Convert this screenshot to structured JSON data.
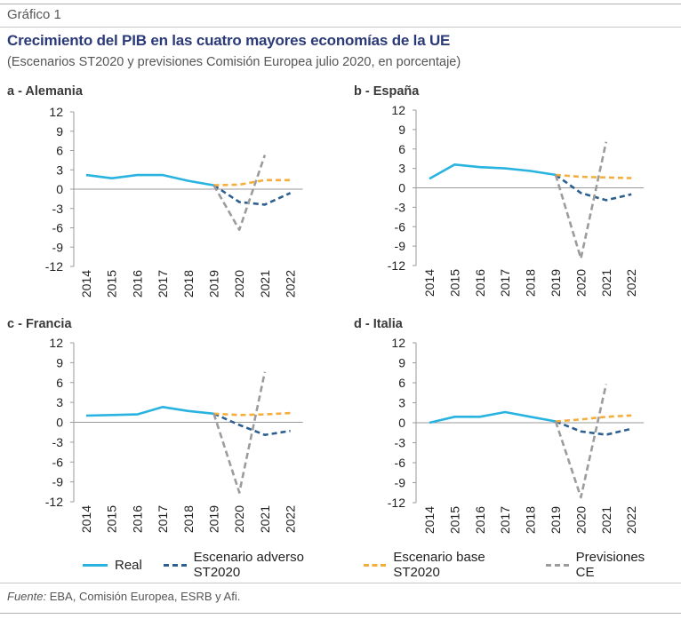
{
  "figure_label": "Gráfico 1",
  "title": "Crecimiento del PIB en las cuatro mayores economías de la UE",
  "subtitle": "(Escenarios ST2020 y previsiones Comisión Europea julio 2020, en porcentaje)",
  "source_label": "Fuente:",
  "source_text": "EBA, Comisión Europea, ESRB y Afi.",
  "colors": {
    "Real": "#29b3e0",
    "Escenario adverso ST2020": "#2d5f91",
    "Escenario base ST2020": "#f5ae3b",
    "Previsiones CE": "#9c9c9c"
  },
  "legend": [
    "Real",
    "Escenario adverso ST2020",
    "Escenario base ST2020",
    "Previsiones CE"
  ],
  "chart_data": [
    {
      "type": "line",
      "title": "a - Alemania",
      "x": [
        "2014",
        "2015",
        "2016",
        "2017",
        "2018",
        "2019",
        "2020",
        "2021",
        "2022"
      ],
      "ylim": [
        -12,
        12
      ],
      "yticks": [
        12,
        9,
        6,
        3,
        0,
        -3,
        -6,
        -9,
        -12
      ],
      "series": [
        {
          "name": "Real",
          "x": [
            "2014",
            "2015",
            "2016",
            "2017",
            "2018",
            "2019"
          ],
          "values": [
            2.2,
            1.7,
            2.2,
            2.2,
            1.3,
            0.6
          ],
          "dashed": false
        },
        {
          "name": "Escenario adverso ST2020",
          "x": [
            "2019",
            "2020",
            "2021",
            "2022"
          ],
          "values": [
            0.6,
            -2.0,
            -2.4,
            -0.6
          ],
          "dashed": true
        },
        {
          "name": "Escenario base ST2020",
          "x": [
            "2019",
            "2020",
            "2021",
            "2022"
          ],
          "values": [
            0.6,
            0.7,
            1.4,
            1.4
          ],
          "dashed": true
        },
        {
          "name": "Previsiones CE",
          "x": [
            "2019",
            "2020",
            "2021"
          ],
          "values": [
            0.6,
            -6.3,
            5.3
          ],
          "dashed": true
        }
      ]
    },
    {
      "type": "line",
      "title": "b - España",
      "x": [
        "2014",
        "2015",
        "2016",
        "2017",
        "2018",
        "2019",
        "2020",
        "2021",
        "2022"
      ],
      "ylim": [
        -12,
        12
      ],
      "yticks": [
        12,
        9,
        6,
        3,
        0,
        -3,
        -6,
        -9,
        -12
      ],
      "series": [
        {
          "name": "Real",
          "x": [
            "2014",
            "2015",
            "2016",
            "2017",
            "2018",
            "2019"
          ],
          "values": [
            1.4,
            3.6,
            3.2,
            3.0,
            2.6,
            2.0
          ],
          "dashed": false
        },
        {
          "name": "Escenario adverso ST2020",
          "x": [
            "2019",
            "2020",
            "2021",
            "2022"
          ],
          "values": [
            2.0,
            -0.8,
            -1.9,
            -1.0
          ],
          "dashed": true
        },
        {
          "name": "Escenario base ST2020",
          "x": [
            "2019",
            "2020",
            "2021",
            "2022"
          ],
          "values": [
            2.0,
            1.7,
            1.6,
            1.5
          ],
          "dashed": true
        },
        {
          "name": "Previsiones CE",
          "x": [
            "2019",
            "2020",
            "2021"
          ],
          "values": [
            2.0,
            -10.9,
            7.1
          ],
          "dashed": true
        }
      ]
    },
    {
      "type": "line",
      "title": "c - Francia",
      "x": [
        "2014",
        "2015",
        "2016",
        "2017",
        "2018",
        "2019",
        "2020",
        "2021",
        "2022"
      ],
      "ylim": [
        -12,
        12
      ],
      "yticks": [
        12,
        9,
        6,
        3,
        0,
        -3,
        -6,
        -9,
        -12
      ],
      "series": [
        {
          "name": "Real",
          "x": [
            "2014",
            "2015",
            "2016",
            "2017",
            "2018",
            "2019"
          ],
          "values": [
            1.0,
            1.1,
            1.2,
            2.3,
            1.7,
            1.3
          ],
          "dashed": false
        },
        {
          "name": "Escenario adverso ST2020",
          "x": [
            "2019",
            "2020",
            "2021",
            "2022"
          ],
          "values": [
            1.3,
            -0.4,
            -1.9,
            -1.3
          ],
          "dashed": true
        },
        {
          "name": "Escenario base ST2020",
          "x": [
            "2019",
            "2020",
            "2021",
            "2022"
          ],
          "values": [
            1.3,
            1.1,
            1.2,
            1.4
          ],
          "dashed": true
        },
        {
          "name": "Previsiones CE",
          "x": [
            "2019",
            "2020",
            "2021"
          ],
          "values": [
            1.3,
            -10.6,
            7.6
          ],
          "dashed": true
        }
      ]
    },
    {
      "type": "line",
      "title": "d - Italia",
      "x": [
        "2014",
        "2015",
        "2016",
        "2017",
        "2018",
        "2019",
        "2020",
        "2021",
        "2022"
      ],
      "ylim": [
        -12,
        12
      ],
      "yticks": [
        12,
        9,
        6,
        3,
        0,
        -3,
        -6,
        -9,
        -12
      ],
      "series": [
        {
          "name": "Real",
          "x": [
            "2014",
            "2015",
            "2016",
            "2017",
            "2018",
            "2019"
          ],
          "values": [
            0.0,
            0.9,
            0.9,
            1.6,
            0.9,
            0.2
          ],
          "dashed": false
        },
        {
          "name": "Escenario adverso ST2020",
          "x": [
            "2019",
            "2020",
            "2021",
            "2022"
          ],
          "values": [
            0.2,
            -1.3,
            -1.8,
            -0.9
          ],
          "dashed": true
        },
        {
          "name": "Escenario base ST2020",
          "x": [
            "2019",
            "2020",
            "2021",
            "2022"
          ],
          "values": [
            0.2,
            0.5,
            0.9,
            1.1
          ],
          "dashed": true
        },
        {
          "name": "Previsiones CE",
          "x": [
            "2019",
            "2020",
            "2021"
          ],
          "values": [
            0.2,
            -11.2,
            5.8
          ],
          "dashed": true
        }
      ]
    }
  ]
}
